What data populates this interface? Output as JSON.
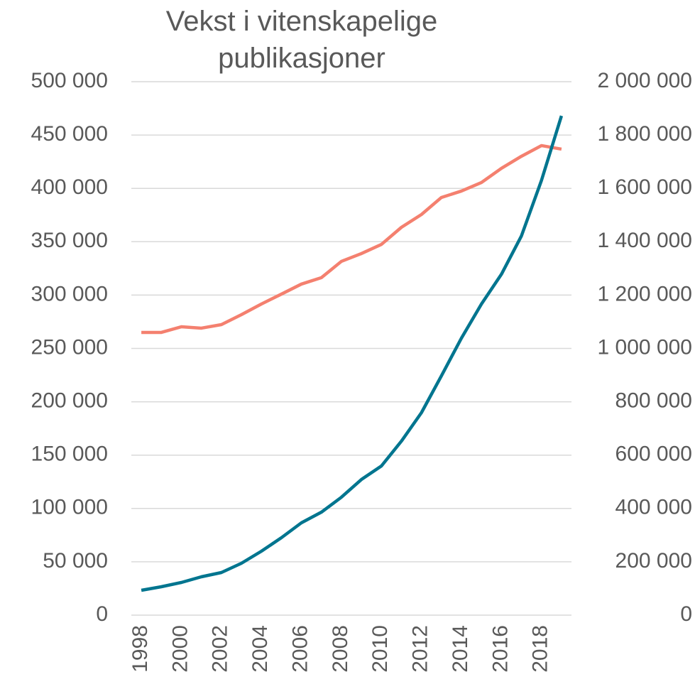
{
  "chart_data": {
    "type": "line",
    "title": "Vekst i vitenskapelige publikasjoner",
    "x": [
      1998,
      1999,
      2000,
      2001,
      2002,
      2003,
      2004,
      2005,
      2006,
      2007,
      2008,
      2009,
      2010,
      2011,
      2012,
      2013,
      2014,
      2015,
      2016,
      2017,
      2018,
      2019
    ],
    "series": [
      {
        "color": "#f4806f",
        "axis": "y",
        "values": [
          265000,
          265000,
          270300,
          269000,
          272300,
          281600,
          291600,
          300900,
          310300,
          316300,
          331600,
          338900,
          347500,
          363500,
          375500,
          391500,
          397500,
          405500,
          418800,
          430100,
          440100,
          436800
        ]
      },
      {
        "color": "#00758f",
        "axis": "y2",
        "values": [
          93200,
          106500,
          122500,
          143800,
          159800,
          194400,
          239700,
          290300,
          346200,
          386100,
          442100,
          508600,
          559200,
          652400,
          759000,
          897400,
          1038600,
          1166400,
          1278200,
          1422000,
          1629800,
          1872100
        ]
      }
    ],
    "xlim": [
      1997.5,
      2019.5
    ],
    "xticks": [
      1998,
      2000,
      2002,
      2004,
      2006,
      2008,
      2010,
      2012,
      2014,
      2016,
      2018
    ],
    "ylim": [
      0,
      500000
    ],
    "yticks": [
      0,
      {
        "value": 50000,
        "label": "50 000"
      },
      {
        "value": 100000,
        "label": "100 000"
      },
      {
        "value": 150000,
        "label": "150 000"
      },
      {
        "value": 200000,
        "label": "200 000"
      },
      {
        "value": 250000,
        "label": "250 000"
      },
      {
        "value": 300000,
        "label": "300 000"
      },
      {
        "value": 350000,
        "label": "350 000"
      },
      {
        "value": 400000,
        "label": "400 000"
      },
      {
        "value": 450000,
        "label": "450 000"
      },
      {
        "value": 500000,
        "label": "500 000"
      }
    ],
    "y2lim": [
      0,
      2000000
    ],
    "y2ticks": [
      0,
      {
        "value": 200000,
        "label": "200 000"
      },
      {
        "value": 400000,
        "label": "400 000"
      },
      {
        "value": 600000,
        "label": "600 000"
      },
      {
        "value": 800000,
        "label": "800 000"
      },
      {
        "value": 1000000,
        "label": "1 000 000"
      },
      {
        "value": 1200000,
        "label": "1 200 000"
      },
      {
        "value": 1400000,
        "label": "1 400 000"
      },
      {
        "value": 1600000,
        "label": "1 600 000"
      },
      {
        "value": 1800000,
        "label": "1 800 000"
      },
      {
        "value": 2000000,
        "label": "2 000 000"
      }
    ],
    "grid": true
  }
}
